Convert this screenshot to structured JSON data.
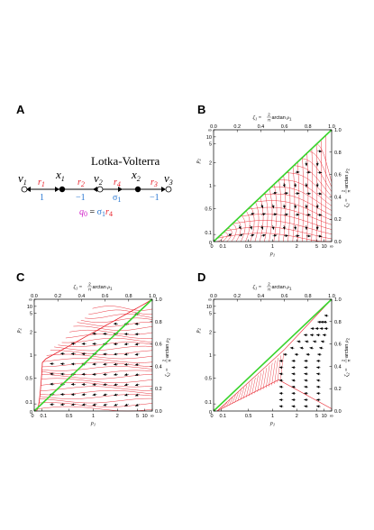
{
  "colors": {
    "red": "#e8202a",
    "blue": "#2a78d2",
    "green": "#39d42d",
    "magenta": "#d01cc8",
    "black": "#000000"
  },
  "panelA": {
    "label": "A",
    "title": "Lotka-Volterra",
    "nodes": {
      "v1": "v",
      "x1": "x",
      "v2": "v",
      "x2": "x",
      "v3": "v",
      "sub1": "1",
      "sub2": "2",
      "sub3": "3"
    },
    "edges": {
      "r1": "r",
      "r2": "r",
      "r4": "r",
      "r3": "r",
      "s1": "1",
      "s2": "2",
      "s4": "4",
      "s3": "3"
    },
    "coefs": {
      "c1": "1",
      "c2": "−1",
      "c3": "σ",
      "c3s": "1",
      "c4": "−1"
    },
    "eq": {
      "q": "q",
      "qs": "0",
      "eq": " = ",
      "sigma": "σ",
      "sigmas": "1",
      "r": "r",
      "rs": "4"
    }
  },
  "panels": [
    {
      "id": "B",
      "label": "B"
    },
    {
      "id": "C",
      "label": "C"
    },
    {
      "id": "D",
      "label": "D"
    }
  ],
  "axes": {
    "top_ticks": [
      "0.0",
      "0.2",
      "0.4",
      "0.6",
      "0.8",
      "1.0"
    ],
    "right_ticks": [
      "0.0",
      "0.2",
      "0.4",
      "0.6",
      "0.8",
      "1.0"
    ],
    "bottom_ticks": [
      "0",
      "0.1",
      "0.5",
      "1",
      "2",
      "5",
      "10",
      "∞"
    ],
    "left_ticks": [
      "0",
      "0.1",
      "0.5",
      "1",
      "2",
      "5",
      "10",
      "∞"
    ],
    "bottom_label": "ρ",
    "bottom_label_sub": "1",
    "left_label": "ρ",
    "left_label_sub": "2",
    "top_label": {
      "zeta": "ζ",
      "zsub": "1",
      "eq": " = ",
      "num": "2",
      "den": "π",
      "fn": " arctan ",
      "rho": "ρ",
      "rsub": "1"
    },
    "right_label": {
      "zeta": "ζ",
      "zsub": "2",
      "eq": " = ",
      "num": "2",
      "den": "π",
      "fn": " arctan ",
      "rho": "ρ",
      "rsub": "2"
    }
  }
}
